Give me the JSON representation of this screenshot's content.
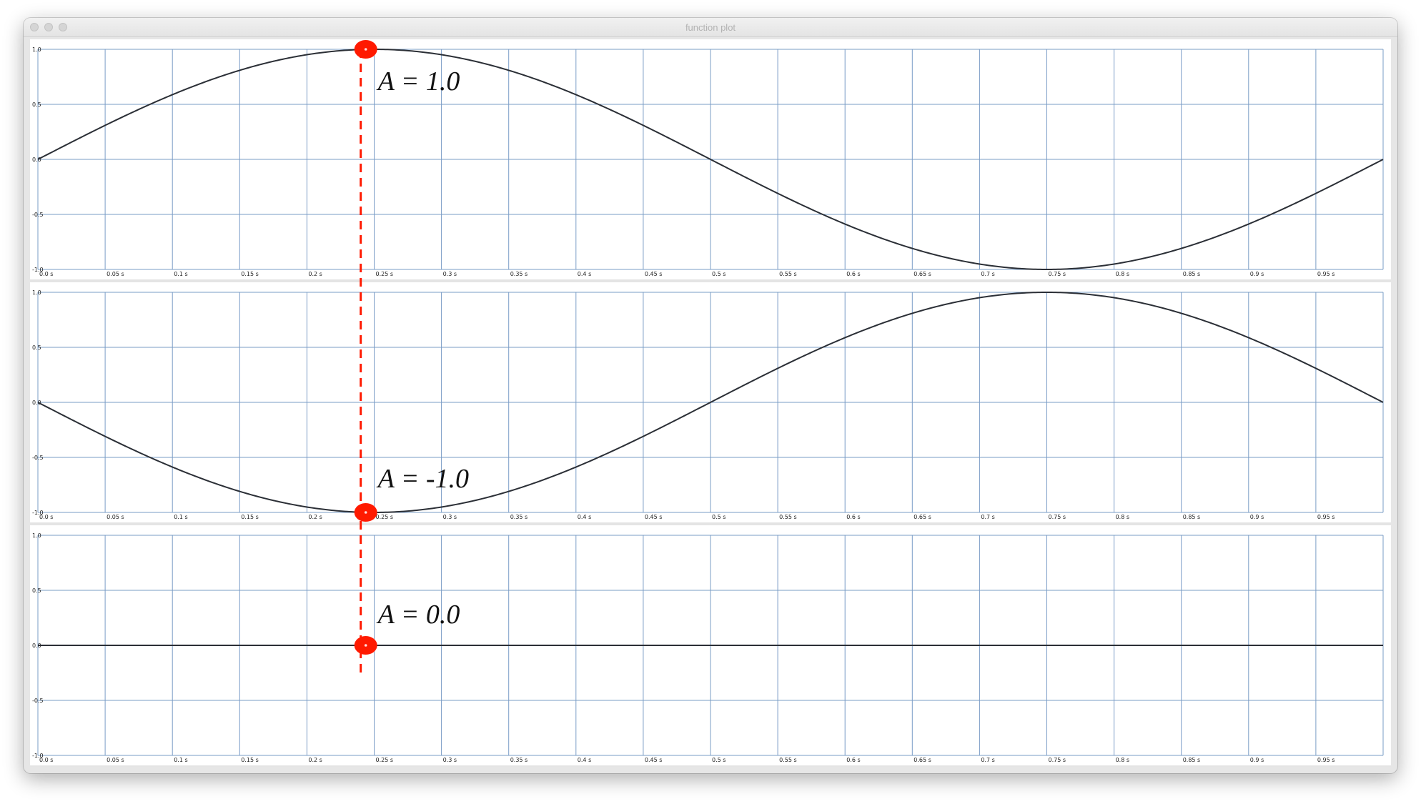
{
  "window": {
    "title": "function plot"
  },
  "chart_data": {
    "type": "line",
    "x_tick_labels": [
      "0.0 s",
      "0.05 s",
      "0.1 s",
      "0.15 s",
      "0.2 s",
      "0.25 s",
      "0.3 s",
      "0.35 s",
      "0.4 s",
      "0.45 s",
      "0.5 s",
      "0.55 s",
      "0.6 s",
      "0.65 s",
      "0.7 s",
      "0.75 s",
      "0.8 s",
      "0.85 s",
      "0.9 s",
      "0.95 s"
    ],
    "y_tick_labels": [
      "1.0",
      "0.5",
      "0.0",
      "-0.5",
      "-1.0"
    ],
    "xlim": [
      0,
      1
    ],
    "ylim": [
      -1,
      1
    ],
    "grid": true,
    "cursor_x": 0.24,
    "marker_color": "#ff1a00",
    "grid_color": "#7a9cc6",
    "panels": [
      {
        "name": "sine-panel",
        "function": "sin(2*pi*t)",
        "amplitude": 1,
        "phase": 1,
        "annotation": "A = 1.0",
        "marker_value": 1.0
      },
      {
        "name": "negative-sine-panel",
        "function": "-sin(2*pi*t)",
        "amplitude": 1,
        "phase": -1,
        "annotation": "A = -1.0",
        "marker_value": -1.0
      },
      {
        "name": "zero-panel",
        "function": "0",
        "amplitude": 0,
        "phase": 0,
        "annotation": "A = 0.0",
        "marker_value": 0.0
      }
    ]
  }
}
